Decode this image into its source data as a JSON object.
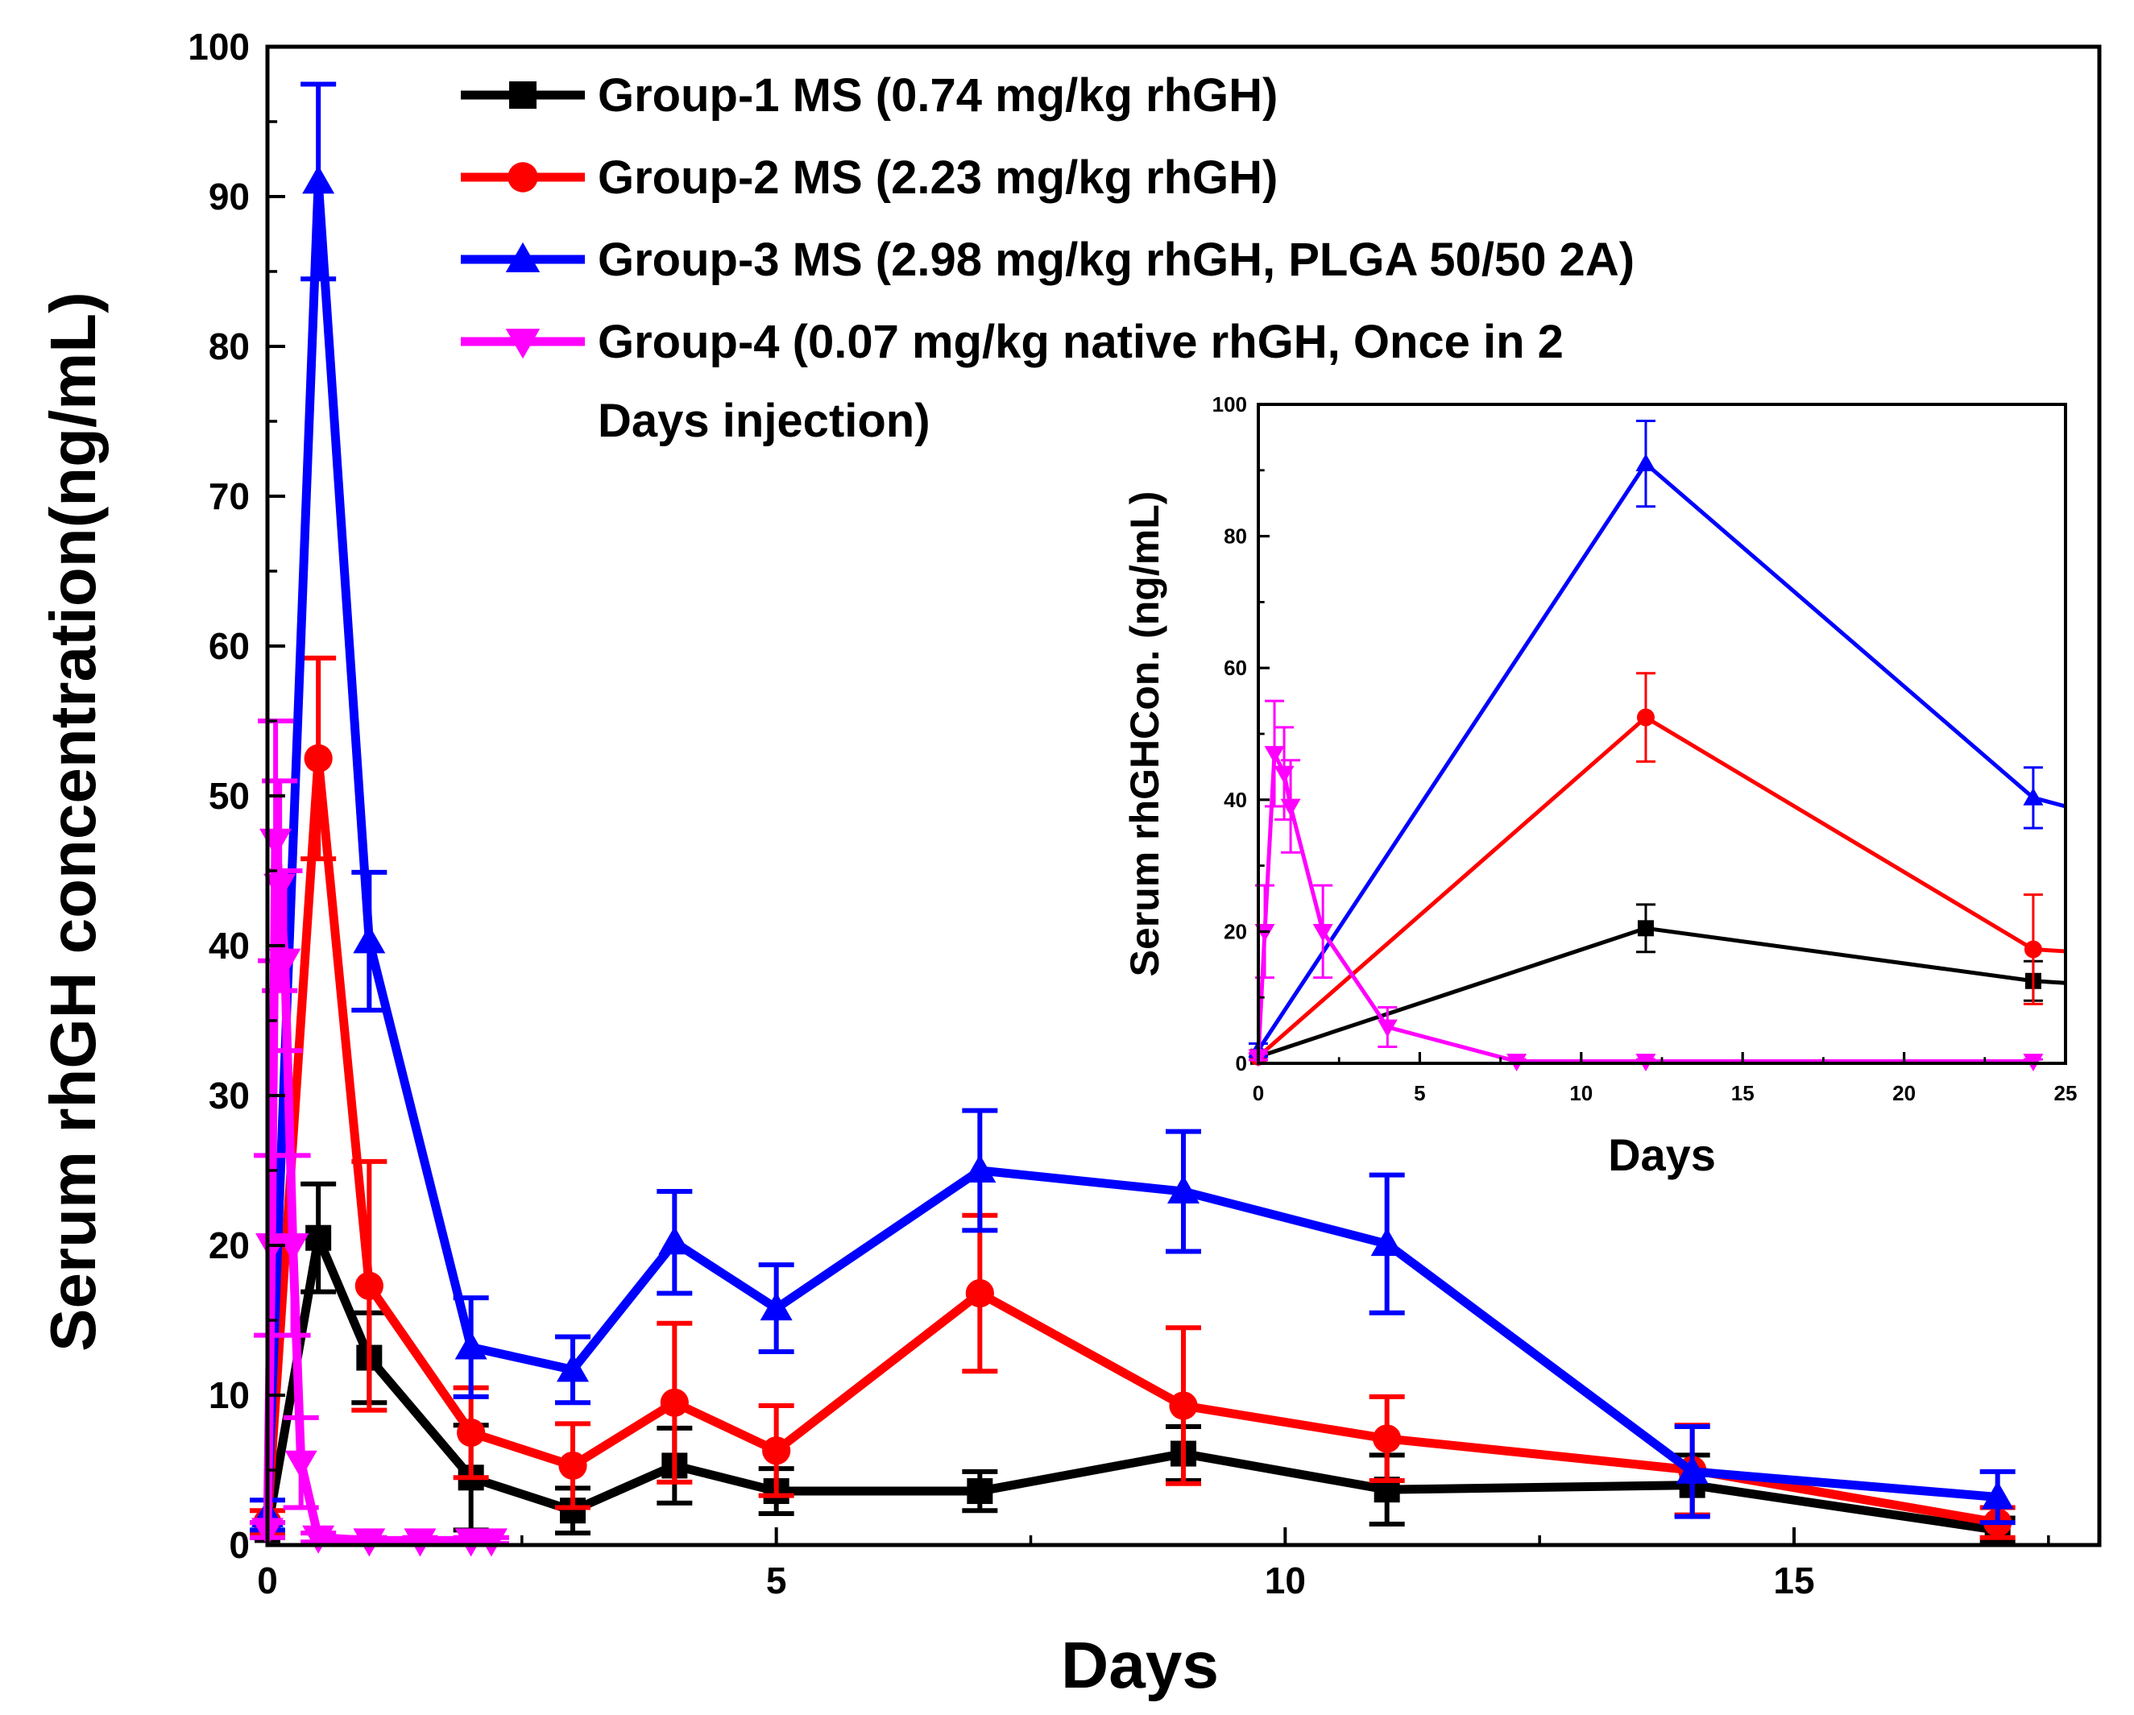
{
  "chart_data": [
    {
      "type": "line",
      "title": "",
      "xlabel": "Days",
      "ylabel": "Serum rhGH concentration(ng/mL)",
      "xlim": [
        0,
        18
      ],
      "ylim": [
        0,
        100
      ],
      "xticks": [
        0,
        5,
        10,
        15
      ],
      "yticks": [
        0,
        10,
        20,
        30,
        40,
        50,
        60,
        70,
        80,
        90,
        100
      ],
      "grid": false,
      "legend_position": "top",
      "series": [
        {
          "name": "Group-1 MS (0.74 mg/kg rhGH)",
          "color": "#000000",
          "marker": "square",
          "x": [
            0,
            0.5,
            1,
            2,
            3,
            4,
            5,
            7,
            9,
            11,
            14,
            17
          ],
          "y": [
            1,
            20.5,
            12.5,
            4.5,
            2.3,
            5.3,
            3.6,
            3.6,
            6.1,
            3.7,
            4.0,
            1.0
          ],
          "err": [
            0.5,
            3.6,
            3.0,
            3.5,
            1.5,
            2.5,
            1.5,
            1.3,
            1.8,
            2.3,
            2.0,
            0.8
          ]
        },
        {
          "name": "Group-2 MS (2.23 mg/kg rhGH)",
          "color": "#ff0000",
          "marker": "circle",
          "x": [
            0,
            0.5,
            1,
            2,
            3,
            4,
            5,
            7,
            9,
            11,
            14,
            17
          ],
          "y": [
            1.5,
            52.5,
            17.3,
            7.5,
            5.3,
            9.5,
            6.3,
            16.8,
            9.3,
            7.1,
            5.0,
            1.5
          ],
          "err": [
            0.8,
            6.7,
            8.3,
            3.0,
            2.8,
            5.3,
            3.0,
            5.2,
            5.2,
            2.8,
            3.0,
            1.0
          ]
        },
        {
          "name": "Group-3 MS (2.98 mg/kg rhGH, PLGA 50/50 2A)",
          "color": "#0000ff",
          "marker": "triangle-up",
          "x": [
            0,
            0.5,
            1,
            2,
            3,
            4,
            5,
            7,
            9,
            11,
            14,
            17
          ],
          "y": [
            2,
            91,
            40.3,
            13.2,
            11.7,
            20.2,
            15.8,
            25.0,
            23.6,
            20.1,
            4.9,
            3.2
          ],
          "err": [
            1.0,
            6.5,
            4.6,
            3.3,
            2.2,
            3.4,
            2.9,
            4.0,
            4.0,
            4.6,
            3.0,
            1.7
          ]
        },
        {
          "name": "Group-4 (0.07 mg/kg native rhGH, Once in 2",
          "name_line2": "Days injection)",
          "color": "#ff00ff",
          "marker": "triangle-down",
          "x": [
            0,
            0.04,
            0.08,
            0.12,
            0.17,
            0.25,
            0.33,
            0.5,
            1,
            1.5,
            2,
            2.2
          ],
          "y": [
            1,
            20,
            47,
            44,
            39,
            20,
            5.5,
            0.5,
            0.3,
            0.3,
            0.3,
            0.3
          ],
          "err": [
            0.5,
            6,
            8,
            7,
            6,
            6,
            3,
            0.3,
            0.2,
            0.2,
            0.2,
            0.2
          ]
        }
      ]
    },
    {
      "type": "line",
      "title": "",
      "xlabel": "Days",
      "ylabel": "Serum rhGHCon. (ng/mL)",
      "xlim": [
        0,
        25
      ],
      "ylim": [
        0,
        100
      ],
      "xticks": [
        0,
        5,
        10,
        15,
        20,
        25
      ],
      "yticks": [
        0,
        20,
        40,
        60,
        80,
        100
      ],
      "grid": false,
      "legend_position": "none",
      "series": [
        {
          "name": "Group-1",
          "color": "#000000",
          "marker": "square",
          "x": [
            0,
            12,
            24,
            25
          ],
          "y": [
            1,
            20.5,
            12.5,
            12.2
          ],
          "err": [
            0.5,
            3.6,
            3.0,
            null
          ]
        },
        {
          "name": "Group-2",
          "color": "#ff0000",
          "marker": "circle",
          "x": [
            0,
            12,
            24,
            25
          ],
          "y": [
            1,
            52.5,
            17.3,
            17.0
          ],
          "err": [
            0.5,
            6.7,
            8.3,
            null
          ]
        },
        {
          "name": "Group-3",
          "color": "#0000ff",
          "marker": "triangle-up",
          "x": [
            0,
            12,
            24,
            25
          ],
          "y": [
            2,
            91,
            40.3,
            39.0
          ],
          "err": [
            1.0,
            6.5,
            4.6,
            null
          ]
        },
        {
          "name": "Group-4",
          "color": "#ff00ff",
          "marker": "triangle-down",
          "x": [
            0,
            0.2,
            0.5,
            0.8,
            1,
            2,
            4,
            8,
            12,
            24
          ],
          "y": [
            1,
            20,
            47,
            44,
            39,
            20,
            5.5,
            0.3,
            0.3,
            0.3
          ],
          "err": [
            0.5,
            7,
            8,
            7,
            7,
            7,
            3,
            0.3,
            0.3,
            0.3
          ]
        }
      ]
    }
  ]
}
